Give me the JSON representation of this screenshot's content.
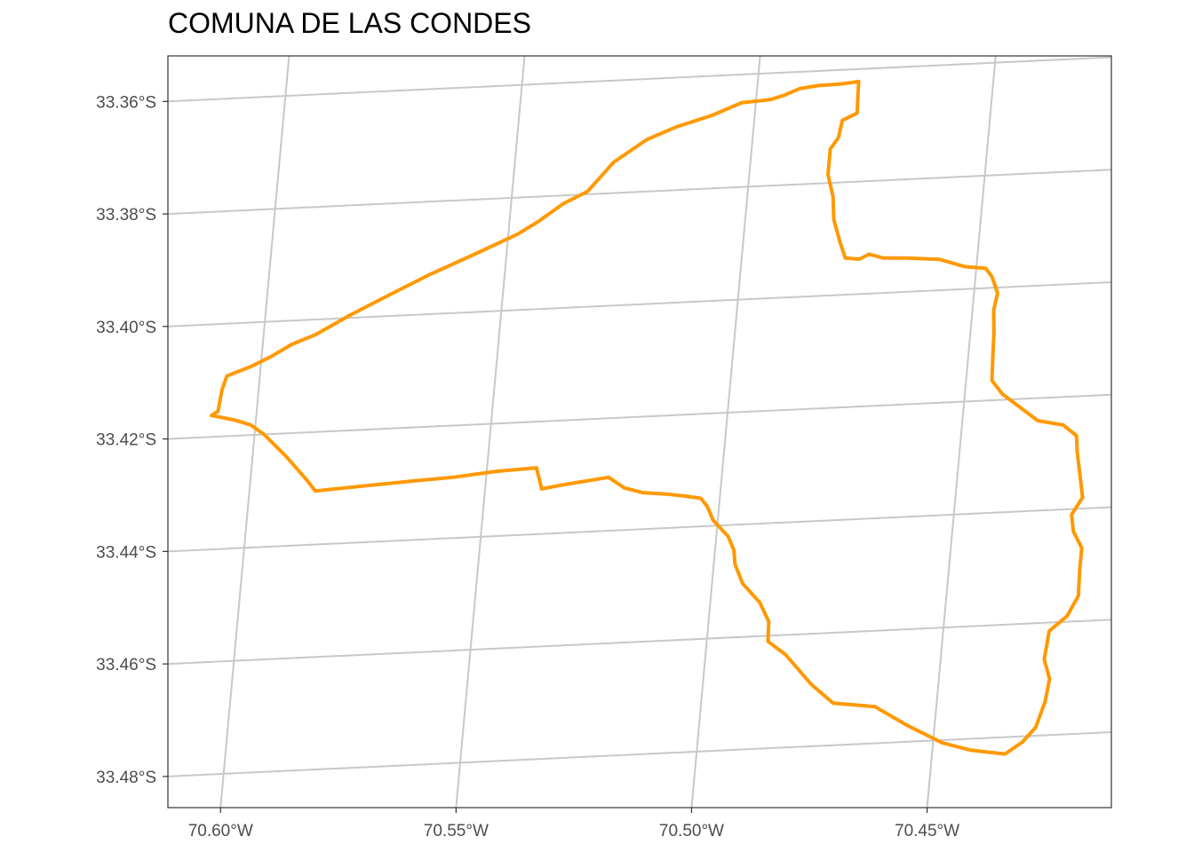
{
  "title": "COMUNA DE LAS CONDES",
  "colors": {
    "boundary": "#FF9900",
    "graticule": "#C8C8C8",
    "frame": "#333333",
    "tick_text": "#4D4D4D"
  },
  "chart_data": {
    "type": "map",
    "title": "COMUNA DE LAS CONDES",
    "lon_ticks": [
      {
        "value": -70.6,
        "label": "70.60°W"
      },
      {
        "value": -70.55,
        "label": "70.55°W"
      },
      {
        "value": -70.5,
        "label": "70.50°W"
      },
      {
        "value": -70.45,
        "label": "70.45°W"
      }
    ],
    "lat_ticks": [
      {
        "value": -33.36,
        "label": "33.36°S"
      },
      {
        "value": -33.38,
        "label": "33.38°S"
      },
      {
        "value": -33.4,
        "label": "33.40°S"
      },
      {
        "value": -33.42,
        "label": "33.42°S"
      },
      {
        "value": -33.44,
        "label": "33.44°S"
      },
      {
        "value": -33.46,
        "label": "33.46°S"
      },
      {
        "value": -33.48,
        "label": "33.48°S"
      }
    ],
    "grid": true,
    "boundary": [
      [
        -70.6095,
        -33.4162
      ],
      [
        -70.6082,
        -33.4155
      ],
      [
        -70.6078,
        -33.4118
      ],
      [
        -70.607,
        -33.4093
      ],
      [
        -70.602,
        -33.4078
      ],
      [
        -70.598,
        -33.4062
      ],
      [
        -70.5938,
        -33.4042
      ],
      [
        -70.589,
        -33.4027
      ],
      [
        -70.582,
        -33.3995
      ],
      [
        -70.574,
        -33.3962
      ],
      [
        -70.566,
        -33.393
      ],
      [
        -70.557,
        -33.3898
      ],
      [
        -70.548,
        -33.3865
      ],
      [
        -70.544,
        -33.3845
      ],
      [
        -70.539,
        -33.3815
      ],
      [
        -70.534,
        -33.3795
      ],
      [
        -70.533,
        -33.3785
      ],
      [
        -70.529,
        -33.3745
      ],
      [
        -70.5225,
        -33.3708
      ],
      [
        -70.5165,
        -33.3688
      ],
      [
        -70.509,
        -33.367
      ],
      [
        -70.503,
        -33.365
      ],
      [
        -70.497,
        -33.3647
      ],
      [
        -70.494,
        -33.364
      ],
      [
        -70.491,
        -33.363
      ],
      [
        -70.487,
        -33.3626
      ],
      [
        -70.482,
        -33.3625
      ],
      [
        -70.4786,
        -33.3622
      ],
      [
        -70.4783,
        -33.3678
      ],
      [
        -70.4813,
        -33.369
      ],
      [
        -70.4818,
        -33.372
      ],
      [
        -70.4833,
        -33.374
      ],
      [
        -70.4833,
        -33.3785
      ],
      [
        -70.4818,
        -33.3825
      ],
      [
        -70.4812,
        -33.3865
      ],
      [
        -70.4795,
        -33.3905
      ],
      [
        -70.478,
        -33.3935
      ],
      [
        -70.475,
        -33.3938
      ],
      [
        -70.473,
        -33.393
      ],
      [
        -70.47,
        -33.3938
      ],
      [
        -70.465,
        -33.394
      ],
      [
        -70.458,
        -33.3945
      ],
      [
        -70.4525,
        -33.396
      ],
      [
        -70.448,
        -33.3965
      ],
      [
        -70.4465,
        -33.398
      ],
      [
        -70.445,
        -33.401
      ],
      [
        -70.4455,
        -33.404
      ],
      [
        -70.445,
        -33.408
      ],
      [
        -70.4448,
        -33.412
      ],
      [
        -70.4445,
        -33.4165
      ],
      [
        -70.442,
        -33.419
      ],
      [
        -70.438,
        -33.4215
      ],
      [
        -70.434,
        -33.424
      ],
      [
        -70.4285,
        -33.425
      ],
      [
        -70.4255,
        -33.427
      ],
      [
        -70.425,
        -33.43
      ],
      [
        -70.424,
        -33.434
      ],
      [
        -70.423,
        -33.438
      ],
      [
        -70.425,
        -33.441
      ],
      [
        -70.4243,
        -33.444
      ],
      [
        -70.4222,
        -33.447
      ],
      [
        -70.4222,
        -33.451
      ],
      [
        -70.422,
        -33.4555
      ],
      [
        -70.424,
        -33.459
      ],
      [
        -70.4275,
        -33.4615
      ],
      [
        -70.428,
        -33.4665
      ],
      [
        -70.4265,
        -33.47
      ],
      [
        -70.427,
        -33.474
      ],
      [
        -70.4285,
        -33.4785
      ],
      [
        -70.431,
        -33.481
      ],
      [
        -70.4345,
        -33.483
      ],
      [
        -70.442,
        -33.482
      ],
      [
        -70.448,
        -33.4805
      ],
      [
        -70.456,
        -33.477
      ],
      [
        -70.463,
        -33.4735
      ],
      [
        -70.472,
        -33.4725
      ],
      [
        -70.477,
        -33.469
      ],
      [
        -70.483,
        -33.4635
      ],
      [
        -70.487,
        -33.461
      ],
      [
        -70.4872,
        -33.4575
      ],
      [
        -70.4895,
        -33.454
      ],
      [
        -70.4935,
        -33.4505
      ],
      [
        -70.4955,
        -33.447
      ],
      [
        -70.496,
        -33.4445
      ],
      [
        -70.4975,
        -33.442
      ],
      [
        -70.501,
        -33.439
      ],
      [
        -70.5025,
        -33.4365
      ],
      [
        -70.504,
        -33.435
      ],
      [
        -70.5072,
        -33.4345
      ],
      [
        -70.511,
        -33.434
      ],
      [
        -70.5165,
        -33.4335
      ],
      [
        -70.5205,
        -33.4325
      ],
      [
        -70.524,
        -33.4305
      ],
      [
        -70.534,
        -33.4315
      ],
      [
        -70.538,
        -33.432
      ],
      [
        -70.5395,
        -33.4282
      ],
      [
        -70.548,
        -33.4285
      ],
      [
        -70.557,
        -33.4292
      ],
      [
        -70.565,
        -33.4295
      ],
      [
        -70.576,
        -33.43
      ],
      [
        -70.586,
        -33.4305
      ],
      [
        -70.588,
        -33.4285
      ],
      [
        -70.593,
        -33.424
      ],
      [
        -70.598,
        -33.42
      ],
      [
        -70.601,
        -33.4182
      ],
      [
        -70.6045,
        -33.4172
      ],
      [
        -70.607,
        -33.4167
      ],
      [
        -70.6095,
        -33.4162
      ]
    ]
  }
}
